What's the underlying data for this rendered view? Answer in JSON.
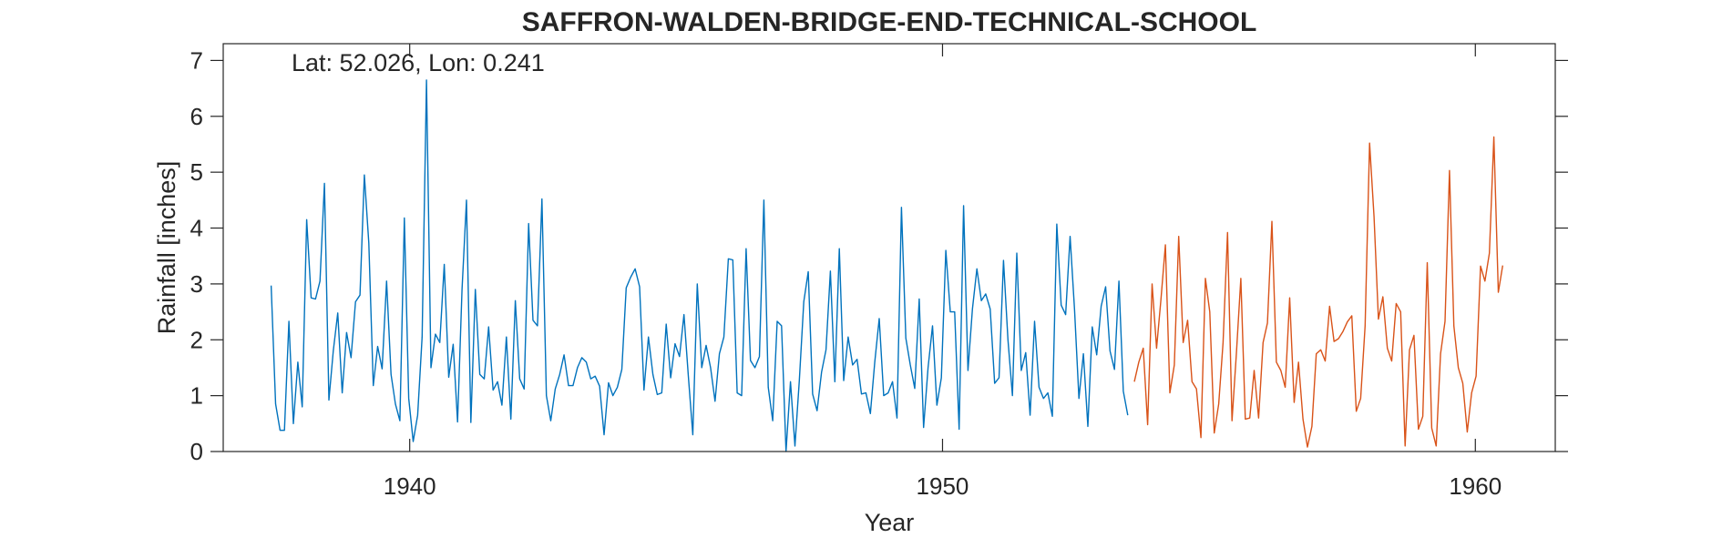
{
  "chart_data": {
    "type": "line",
    "title": "SAFFRON-WALDEN-BRIDGE-END-TECHNICAL-SCHOOL",
    "xlabel": "Year",
    "ylabel": "Rainfall [inches]",
    "annotation": "Lat: 52.026, Lon: 0.241",
    "xlim": [
      1936.5,
      1961.5
    ],
    "ylim": [
      0,
      7.3
    ],
    "xticks": [
      1940,
      1950,
      1960
    ],
    "xtick_labels": [
      "1940",
      "1950",
      "1960"
    ],
    "yticks": [
      0,
      1,
      2,
      3,
      4,
      5,
      6,
      7
    ],
    "ytick_labels": [
      "0",
      "1",
      "2",
      "3",
      "4",
      "5",
      "6",
      "7"
    ],
    "grid": false,
    "colors": {
      "series1": "#0072BD",
      "series2": "#D95319",
      "axes": "#262626"
    },
    "series": [
      {
        "x_start": 1937.4,
        "x_step": 0.0833,
        "values": [
          2.97,
          0.85,
          0.38,
          0.38,
          2.33,
          0.5,
          1.6,
          0.8,
          4.15,
          2.75,
          2.73,
          3.05,
          4.8,
          0.92,
          1.8,
          2.48,
          1.05,
          2.13,
          1.68,
          2.68,
          2.8,
          4.95,
          3.73,
          1.18,
          1.88,
          1.48,
          3.05,
          1.38,
          0.85,
          0.55,
          4.18,
          0.95,
          0.18,
          0.65,
          2.05,
          6.65,
          1.5,
          2.1,
          1.95,
          3.35,
          1.33,
          1.92,
          0.53,
          2.9,
          4.5,
          0.52,
          2.9,
          1.38,
          1.3,
          2.23,
          1.1,
          1.25,
          0.83,
          2.05,
          0.58,
          2.7,
          1.3,
          1.12,
          4.08,
          2.35,
          2.25,
          4.52,
          1.0,
          0.55,
          1.12,
          1.38,
          1.73,
          1.18,
          1.18,
          1.5,
          1.68,
          1.6,
          1.3,
          1.35,
          1.17,
          0.3,
          1.23,
          1.0,
          1.15,
          1.47,
          2.93,
          3.12,
          3.27,
          2.95,
          1.1,
          2.05,
          1.38,
          1.02,
          1.05,
          2.28,
          1.32,
          1.93,
          1.7,
          2.45,
          1.35,
          0.3,
          3.0,
          1.5,
          1.9,
          1.5,
          0.9,
          1.75,
          2.05,
          3.45,
          3.43,
          1.05,
          1.0,
          3.63,
          1.63,
          1.5,
          1.7,
          4.5,
          1.15,
          0.55,
          2.33,
          2.25,
          0.0,
          1.25,
          0.1,
          1.27,
          2.68,
          3.22,
          1.03,
          0.73,
          1.42,
          1.82,
          3.23,
          1.25,
          3.63,
          1.27,
          2.05,
          1.55,
          1.65,
          1.03,
          1.05,
          0.68,
          1.6,
          2.38,
          1.0,
          1.05,
          1.25,
          0.6,
          4.37,
          2.03,
          1.55,
          1.13,
          2.73,
          0.43,
          1.5,
          2.25,
          0.83,
          1.32,
          3.6,
          2.5,
          2.5,
          0.4,
          4.4,
          1.45,
          2.55,
          3.27,
          2.7,
          2.82,
          2.55,
          1.22,
          1.32,
          3.42,
          2.0,
          1.0,
          3.55,
          1.45,
          1.77,
          0.65,
          2.33,
          1.15,
          0.95,
          1.05,
          0.63,
          4.07,
          2.62,
          2.45,
          3.85,
          2.53,
          0.95,
          1.75,
          0.45,
          2.23,
          1.73,
          2.6,
          2.95,
          1.8,
          1.47,
          3.05,
          1.08,
          0.65
        ]
      },
      {
        "x_start": 1953.6,
        "x_step": 0.0833,
        "values": [
          1.25,
          1.6,
          1.85,
          0.48,
          3.0,
          1.85,
          2.72,
          3.7,
          1.05,
          1.55,
          3.85,
          1.95,
          2.35,
          1.25,
          1.12,
          0.25,
          3.1,
          2.5,
          0.33,
          0.85,
          1.95,
          3.92,
          0.55,
          1.75,
          3.1,
          0.58,
          0.6,
          1.45,
          0.6,
          1.95,
          2.3,
          4.12,
          1.6,
          1.45,
          1.15,
          2.75,
          0.88,
          1.6,
          0.58,
          0.08,
          0.45,
          1.75,
          1.82,
          1.62,
          2.6,
          1.97,
          2.02,
          2.15,
          2.32,
          2.43,
          0.72,
          0.95,
          2.25,
          5.52,
          4.2,
          2.37,
          2.77,
          1.85,
          1.62,
          2.65,
          2.5,
          0.1,
          1.82,
          2.08,
          0.4,
          0.63,
          3.38,
          0.42,
          0.1,
          1.75,
          2.33,
          5.03,
          2.25,
          1.5,
          1.22,
          0.35,
          1.05,
          1.35,
          3.32,
          3.05,
          3.55,
          5.63,
          2.85,
          3.33
        ]
      }
    ]
  }
}
